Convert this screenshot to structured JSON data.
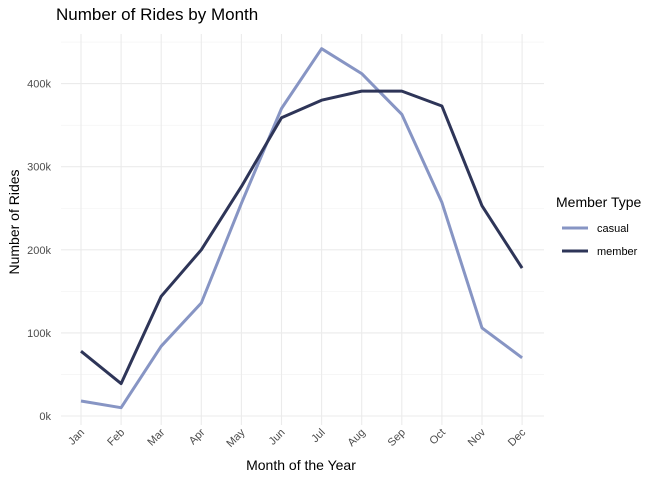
{
  "chart_data": {
    "type": "line",
    "title": "Number of Rides by Month",
    "xlabel": "Month of the Year",
    "ylabel": "Number of Rides",
    "categories": [
      "Jan",
      "Feb",
      "Mar",
      "Apr",
      "May",
      "Jun",
      "Jul",
      "Aug",
      "Sep",
      "Oct",
      "Nov",
      "Dec"
    ],
    "ylim": [
      0,
      450000
    ],
    "yticks": [
      {
        "value": 0,
        "label": "0k"
      },
      {
        "value": 100000,
        "label": "100k"
      },
      {
        "value": 200000,
        "label": "200k"
      },
      {
        "value": 300000,
        "label": "300k"
      },
      {
        "value": 400000,
        "label": "400k"
      }
    ],
    "grid": true,
    "legend": {
      "title": "Member Type",
      "position": "right"
    },
    "series": [
      {
        "name": "casual",
        "color": "#8795c4",
        "values": [
          18000,
          10000,
          84000,
          136000,
          256000,
          370000,
          442000,
          412000,
          363000,
          257000,
          106000,
          70000
        ]
      },
      {
        "name": "member",
        "color": "#2e3558",
        "values": [
          78000,
          39000,
          144000,
          200000,
          276000,
          359000,
          380000,
          391000,
          391000,
          373000,
          253000,
          178000
        ]
      }
    ]
  }
}
